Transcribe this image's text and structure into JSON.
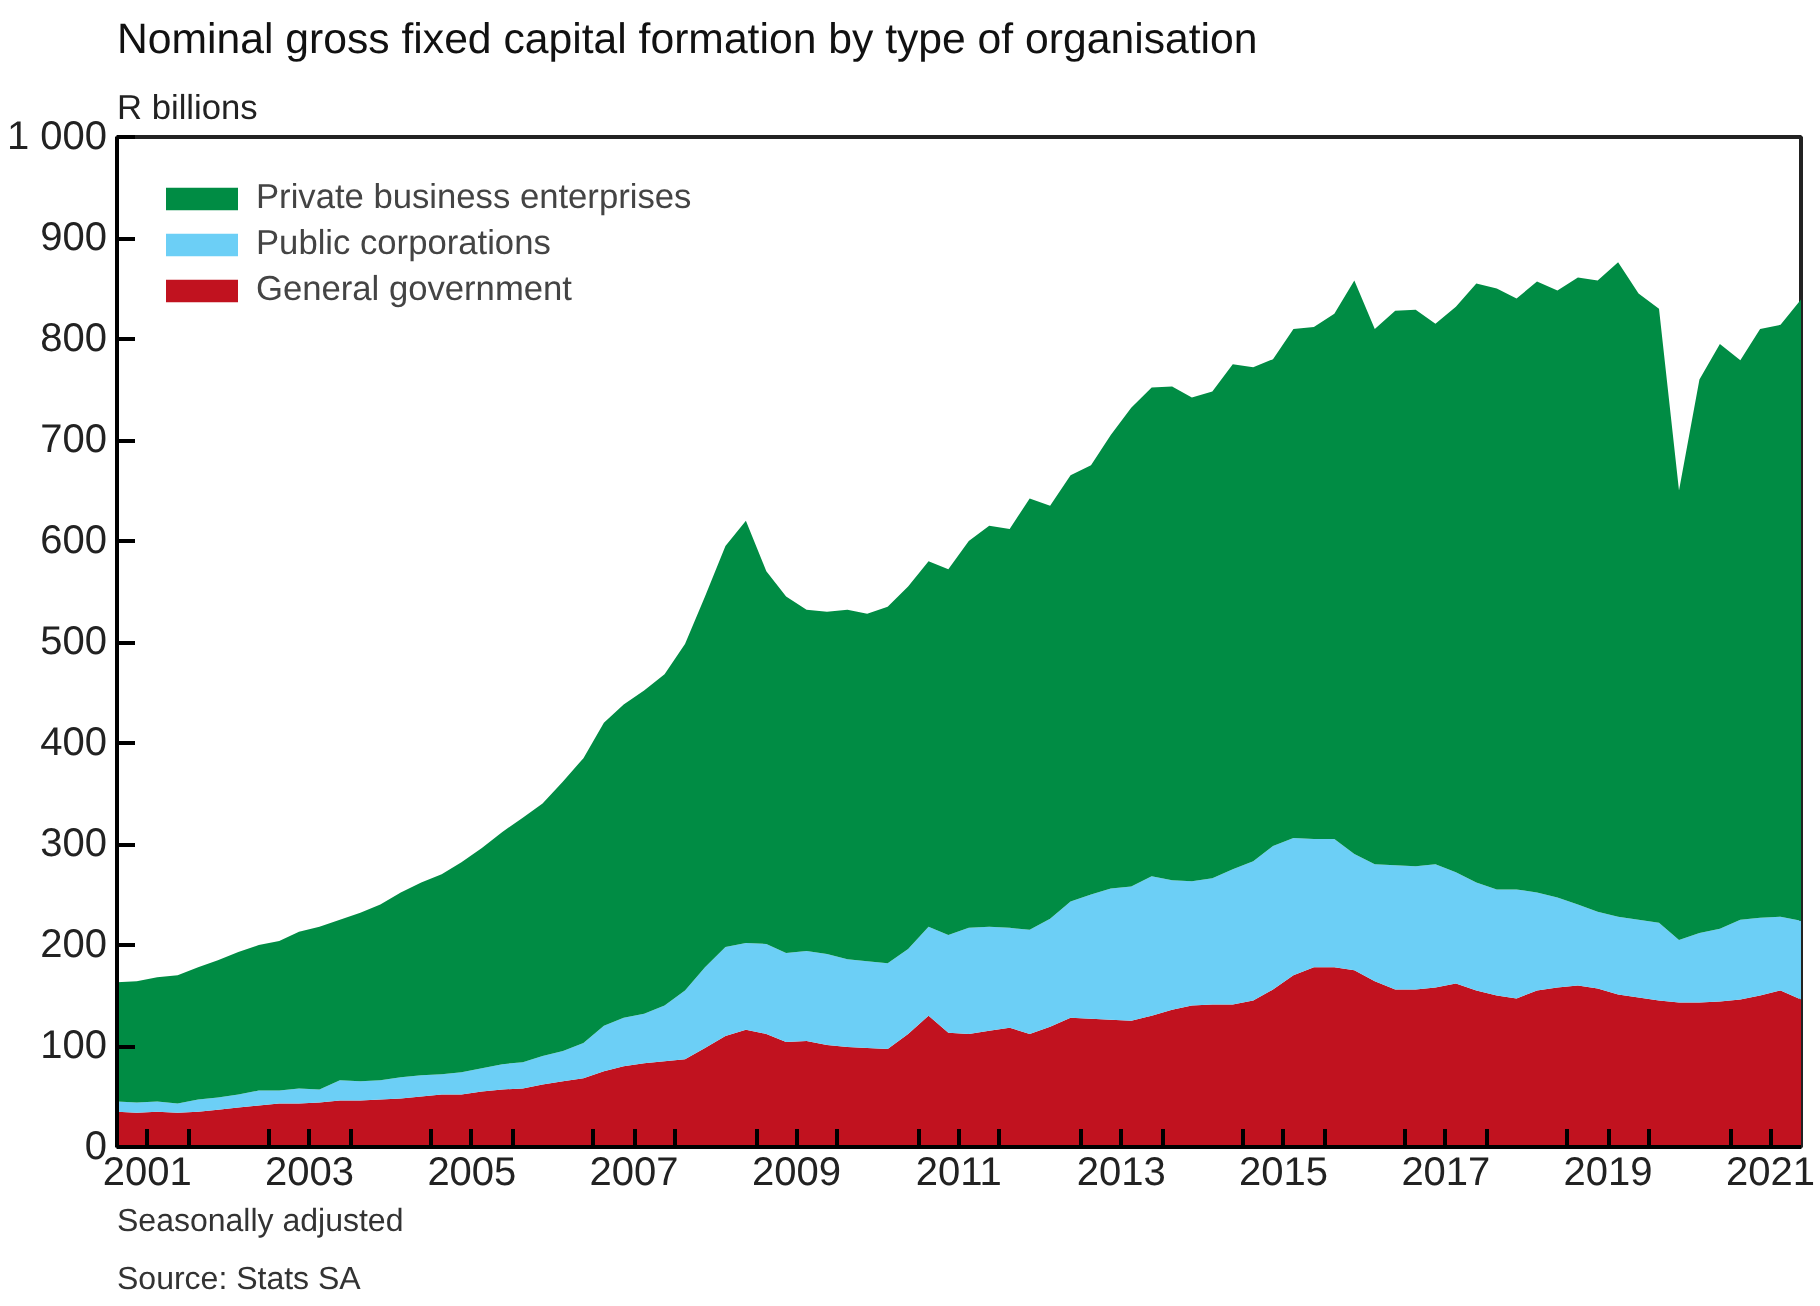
{
  "chart_data": {
    "type": "area",
    "stacked": true,
    "title": "Nominal gross fixed capital formation by type of organisation",
    "ylabel": "R billions",
    "annotations": [
      "Seasonally adjusted",
      "Source: Stats SA"
    ],
    "x": [
      "2001-02-15",
      "2001-05-15",
      "2001-08-15",
      "2001-11-15",
      "2002-02-15",
      "2002-05-15",
      "2002-08-15",
      "2002-11-15",
      "2003-02-15",
      "2003-05-15",
      "2003-08-15",
      "2003-11-15",
      "2004-02-15",
      "2004-05-15",
      "2004-08-15",
      "2004-11-15",
      "2005-02-15",
      "2005-05-15",
      "2005-08-15",
      "2005-11-15",
      "2006-02-15",
      "2006-05-15",
      "2006-08-15",
      "2006-11-15",
      "2007-02-15",
      "2007-05-15",
      "2007-08-15",
      "2007-11-15",
      "2008-02-15",
      "2008-05-15",
      "2008-08-15",
      "2008-11-15",
      "2009-02-15",
      "2009-05-15",
      "2009-08-15",
      "2009-11-15",
      "2010-02-15",
      "2010-05-15",
      "2010-08-15",
      "2010-11-15",
      "2011-02-15",
      "2011-05-15",
      "2011-08-15",
      "2011-11-15",
      "2012-02-15",
      "2012-05-15",
      "2012-08-15",
      "2012-11-15",
      "2013-02-15",
      "2013-05-15",
      "2013-08-15",
      "2013-11-15",
      "2014-02-15",
      "2014-05-15",
      "2014-08-15",
      "2014-11-15",
      "2015-02-15",
      "2015-05-15",
      "2015-08-15",
      "2015-11-15",
      "2016-02-15",
      "2016-05-15",
      "2016-08-15",
      "2016-11-15",
      "2017-02-15",
      "2017-05-15",
      "2017-08-15",
      "2017-11-15",
      "2018-02-15",
      "2018-05-15",
      "2018-08-15",
      "2018-11-15",
      "2019-02-15",
      "2019-05-15",
      "2019-08-15",
      "2019-11-15",
      "2020-02-15",
      "2020-05-15",
      "2020-08-15",
      "2020-11-15",
      "2021-02-15",
      "2021-05-15",
      "2021-08-15",
      "2021-11-15"
    ],
    "xlim": [
      "2001-02-15",
      "2021-11-15"
    ],
    "xticks": [
      {
        "value": "2001-07-01",
        "label": "2001"
      },
      {
        "value": "2002-01-01",
        "label": null
      },
      {
        "value": "2003-01-01",
        "label": null
      },
      {
        "value": "2003-07-01",
        "label": "2003"
      },
      {
        "value": "2004-01-01",
        "label": null
      },
      {
        "value": "2005-01-01",
        "label": null
      },
      {
        "value": "2005-07-01",
        "label": "2005"
      },
      {
        "value": "2006-01-01",
        "label": null
      },
      {
        "value": "2007-01-01",
        "label": null
      },
      {
        "value": "2007-07-01",
        "label": "2007"
      },
      {
        "value": "2008-01-01",
        "label": null
      },
      {
        "value": "2009-01-01",
        "label": null
      },
      {
        "value": "2009-07-01",
        "label": "2009"
      },
      {
        "value": "2010-01-01",
        "label": null
      },
      {
        "value": "2011-01-01",
        "label": null
      },
      {
        "value": "2011-07-01",
        "label": "2011"
      },
      {
        "value": "2012-01-01",
        "label": null
      },
      {
        "value": "2013-01-01",
        "label": null
      },
      {
        "value": "2013-07-01",
        "label": "2013"
      },
      {
        "value": "2014-01-01",
        "label": null
      },
      {
        "value": "2015-01-01",
        "label": null
      },
      {
        "value": "2015-07-01",
        "label": "2015"
      },
      {
        "value": "2016-01-01",
        "label": null
      },
      {
        "value": "2017-01-01",
        "label": null
      },
      {
        "value": "2017-07-01",
        "label": "2017"
      },
      {
        "value": "2018-01-01",
        "label": null
      },
      {
        "value": "2019-01-01",
        "label": null
      },
      {
        "value": "2019-07-01",
        "label": "2019"
      },
      {
        "value": "2020-01-01",
        "label": null
      },
      {
        "value": "2021-01-01",
        "label": null
      },
      {
        "value": "2021-07-01",
        "label": "2021"
      }
    ],
    "ylim": [
      0,
      1000
    ],
    "yticks": [
      0,
      100,
      200,
      300,
      400,
      500,
      600,
      700,
      800,
      900,
      {
        "value": 1000,
        "label": "1 000"
      }
    ],
    "grid": false,
    "legend": "top left",
    "series": [
      {
        "name": "General government",
        "color": "#c1121f",
        "values": [
          35,
          34,
          35,
          34,
          35,
          37,
          39,
          41,
          43,
          43,
          44,
          46,
          46,
          47,
          48,
          50,
          52,
          52,
          55,
          57,
          58,
          62,
          65,
          68,
          75,
          80,
          83,
          85,
          87,
          98,
          110,
          116,
          112,
          104,
          105,
          101,
          99,
          98,
          97,
          112,
          130,
          113,
          112,
          115,
          118,
          112,
          119,
          128,
          127,
          126,
          125,
          130,
          136,
          140,
          141,
          141,
          145,
          156,
          170,
          178,
          178,
          175,
          164,
          156,
          156,
          158,
          162,
          155,
          150,
          147,
          155,
          158,
          160,
          157,
          151,
          148,
          145,
          143,
          143,
          144,
          146,
          150,
          155,
          146
        ]
      },
      {
        "name": "Public corporations",
        "color": "#6ccff6",
        "values": [
          10,
          10,
          10,
          9,
          12,
          12,
          13,
          15,
          13,
          15,
          13,
          20,
          19,
          19,
          21,
          21,
          20,
          22,
          23,
          25,
          26,
          28,
          30,
          35,
          45,
          48,
          49,
          55,
          68,
          80,
          88,
          86,
          89,
          88,
          89,
          90,
          87,
          86,
          85,
          84,
          88,
          97,
          105,
          103,
          99,
          103,
          107,
          115,
          123,
          130,
          133,
          138,
          128,
          123,
          125,
          134,
          138,
          142,
          136,
          127,
          127,
          115,
          116,
          123,
          122,
          122,
          110,
          107,
          105,
          108,
          97,
          89,
          80,
          76,
          77,
          77,
          77,
          62,
          69,
          72,
          79,
          77,
          73,
          78
        ]
      },
      {
        "name": "Private business enterprises",
        "color": "#008c44",
        "values": [
          118,
          120,
          123,
          127,
          131,
          136,
          141,
          144,
          148,
          155,
          161,
          159,
          167,
          174,
          183,
          191,
          198,
          208,
          218,
          230,
          242,
          250,
          267,
          282,
          300,
          310,
          320,
          328,
          343,
          367,
          397,
          418,
          369,
          353,
          338,
          339,
          346,
          344,
          353,
          359,
          362,
          362,
          383,
          397,
          395,
          427,
          409,
          422,
          425,
          449,
          474,
          484,
          489,
          479,
          482,
          500,
          489,
          482,
          504,
          507,
          520,
          568,
          530,
          549,
          551,
          535,
          560,
          593,
          595,
          585,
          605,
          601,
          621,
          625,
          648,
          620,
          608,
          445,
          548,
          579,
          554,
          583,
          586,
          615
        ]
      }
    ]
  }
}
